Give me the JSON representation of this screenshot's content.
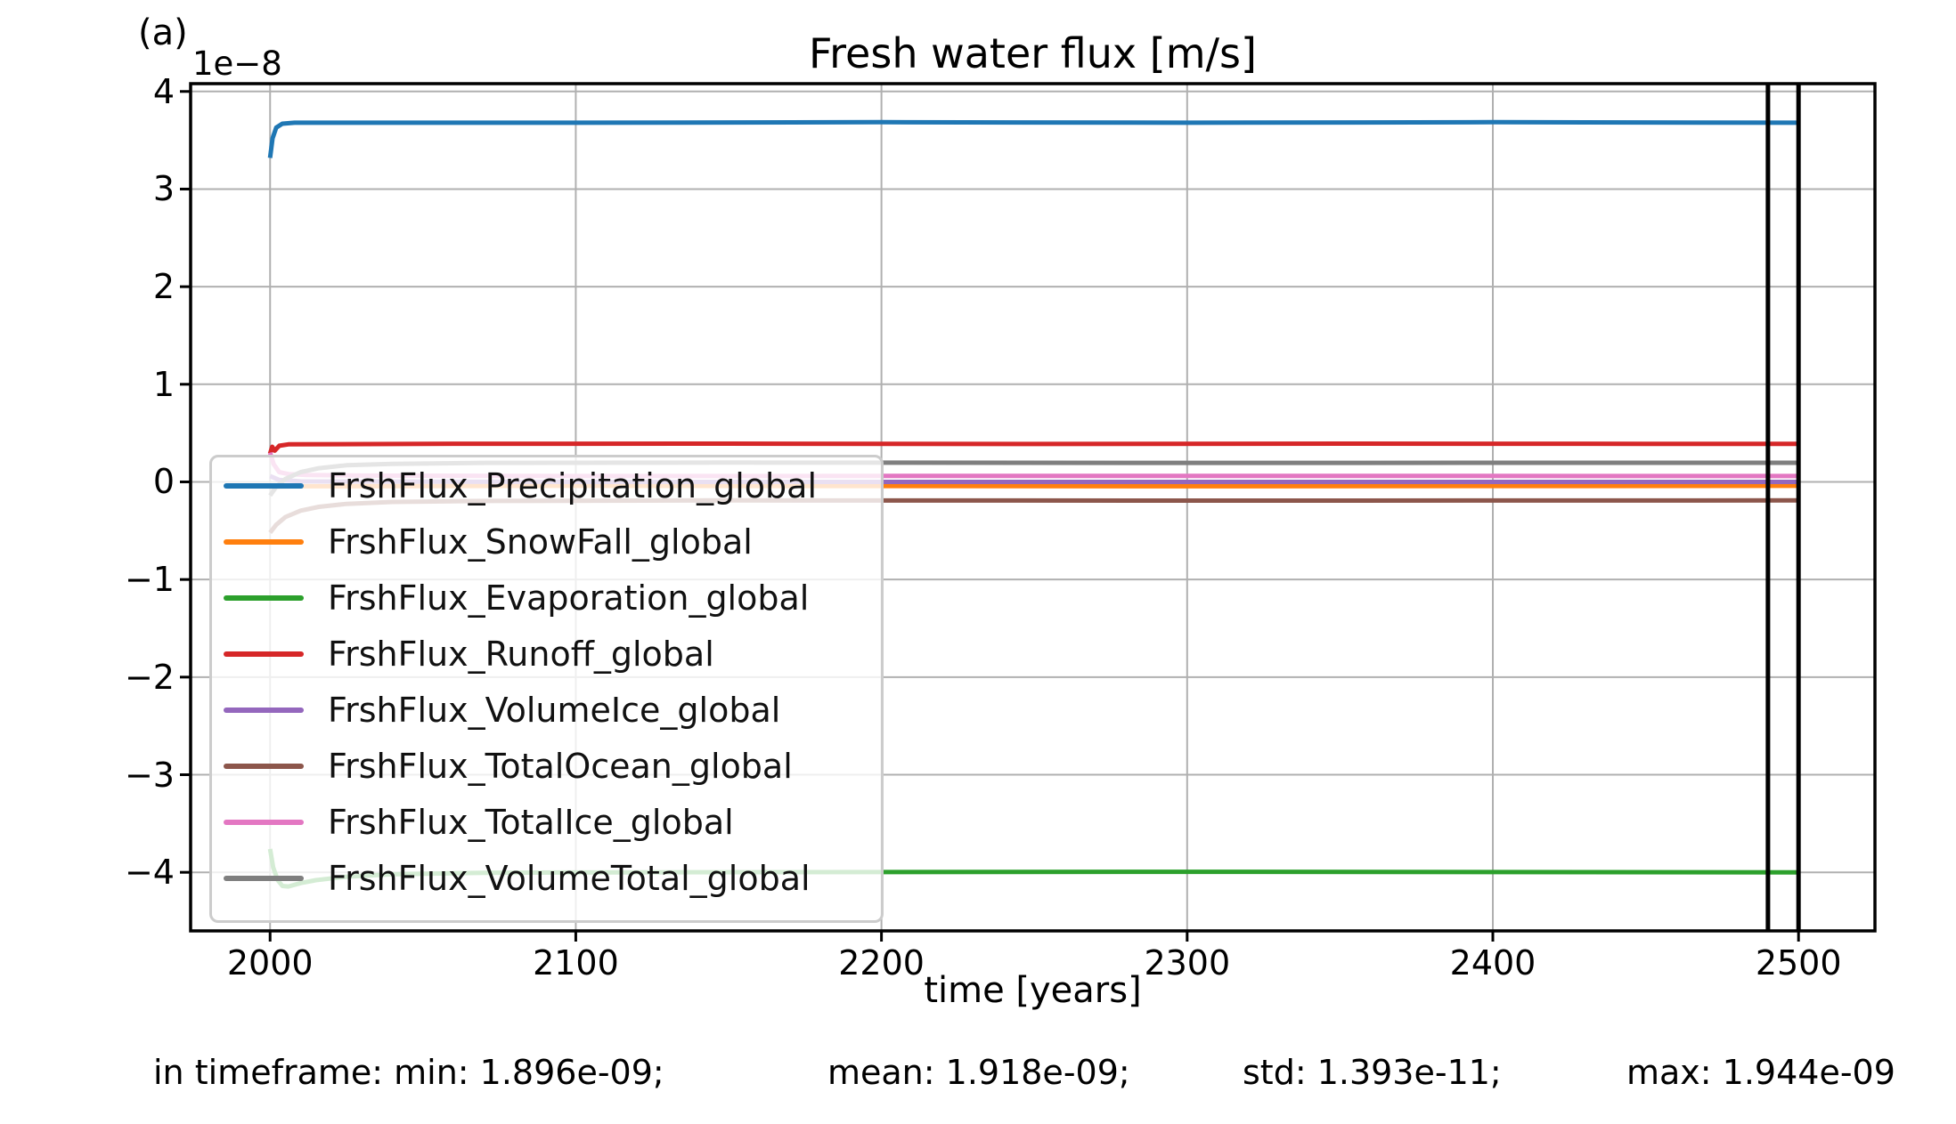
{
  "figure": {
    "panel_label": "(a)",
    "title": "Fresh water flux [m/s]",
    "xlabel": "time [years]",
    "y_offset_label": "1e−8"
  },
  "footer": {
    "segments": [
      "in timeframe: min: 1.896e-09;",
      "mean: 1.918e-09;",
      "std: 1.393e-11;",
      "max: 1.944e-09"
    ]
  },
  "chart_data": {
    "type": "line",
    "title": "Fresh water flux [m/s]",
    "xlabel": "time [years]",
    "ylabel": "",
    "y_scale_factor": "1e-8",
    "xlim": [
      1974,
      2525
    ],
    "ylim_in_1e8": [
      -4.6,
      4.08
    ],
    "grid": true,
    "grid_color": "#b0b0b0",
    "spine_color": "#000000",
    "xticks": [
      2000,
      2100,
      2200,
      2300,
      2400,
      2500
    ],
    "yticks_in_1e8": [
      4,
      3,
      2,
      1,
      0,
      -1,
      -2,
      -3,
      -4
    ],
    "ytick_labels": [
      "4",
      "3",
      "2",
      "1",
      "0",
      "−1",
      "−2",
      "−3",
      "−4"
    ],
    "timeframe_marker_years": [
      2490,
      2500
    ],
    "marker_color": "#000000",
    "legend_position": "lower left",
    "series": [
      {
        "name": "FrshFlux_Precipitation_global",
        "color": "#1f77b4",
        "points_year_value1e8": [
          [
            2000,
            3.32
          ],
          [
            2000.8,
            3.52
          ],
          [
            2002,
            3.63
          ],
          [
            2004,
            3.67
          ],
          [
            2008,
            3.68
          ],
          [
            2100,
            3.68
          ],
          [
            2200,
            3.685
          ],
          [
            2300,
            3.68
          ],
          [
            2400,
            3.685
          ],
          [
            2500,
            3.68
          ]
        ]
      },
      {
        "name": "FrshFlux_SnowFall_global",
        "color": "#ff7f0e",
        "points_year_value1e8": [
          [
            2000,
            -0.05
          ],
          [
            2010,
            -0.045
          ],
          [
            2100,
            -0.04
          ],
          [
            2300,
            -0.045
          ],
          [
            2500,
            -0.04
          ]
        ]
      },
      {
        "name": "FrshFlux_Evaporation_global",
        "color": "#2ca02c",
        "points_year_value1e8": [
          [
            2000,
            -3.76
          ],
          [
            2001,
            -3.95
          ],
          [
            2002.5,
            -4.08
          ],
          [
            2004,
            -4.14
          ],
          [
            2006,
            -4.145
          ],
          [
            2010,
            -4.11
          ],
          [
            2015,
            -4.08
          ],
          [
            2025,
            -4.045
          ],
          [
            2040,
            -4.02
          ],
          [
            2070,
            -4.005
          ],
          [
            2120,
            -4.0
          ],
          [
            2300,
            -3.995
          ],
          [
            2500,
            -4.0
          ]
        ]
      },
      {
        "name": "FrshFlux_Runoff_global",
        "color": "#d62728",
        "points_year_value1e8": [
          [
            2000,
            0.29
          ],
          [
            2000.7,
            0.36
          ],
          [
            2001.5,
            0.32
          ],
          [
            2003,
            0.37
          ],
          [
            2006,
            0.385
          ],
          [
            2050,
            0.39
          ],
          [
            2150,
            0.392
          ],
          [
            2250,
            0.388
          ],
          [
            2350,
            0.392
          ],
          [
            2450,
            0.39
          ],
          [
            2500,
            0.39
          ]
        ]
      },
      {
        "name": "FrshFlux_VolumeIce_global",
        "color": "#9467bd",
        "points_year_value1e8": [
          [
            2000,
            0.06
          ],
          [
            2003,
            0.02
          ],
          [
            2010,
            0.005
          ],
          [
            2100,
            0.0
          ],
          [
            2300,
            0.0
          ],
          [
            2500,
            0.0
          ]
        ]
      },
      {
        "name": "FrshFlux_TotalOcean_global",
        "color": "#8c564b",
        "points_year_value1e8": [
          [
            2000,
            -0.52
          ],
          [
            2002,
            -0.44
          ],
          [
            2005,
            -0.36
          ],
          [
            2010,
            -0.295
          ],
          [
            2016,
            -0.255
          ],
          [
            2025,
            -0.225
          ],
          [
            2040,
            -0.205
          ],
          [
            2070,
            -0.195
          ],
          [
            2150,
            -0.19
          ],
          [
            2300,
            -0.192
          ],
          [
            2500,
            -0.19
          ]
        ]
      },
      {
        "name": "FrshFlux_TotalIce_global",
        "color": "#e377c2",
        "points_year_value1e8": [
          [
            2000,
            0.3
          ],
          [
            2001.2,
            0.18
          ],
          [
            2003,
            0.1
          ],
          [
            2006,
            0.08
          ],
          [
            2012,
            0.07
          ],
          [
            2030,
            0.065
          ],
          [
            2100,
            0.06
          ],
          [
            2300,
            0.062
          ],
          [
            2500,
            0.06
          ]
        ]
      },
      {
        "name": "FrshFlux_VolumeTotal_global",
        "color": "#7f7f7f",
        "points_year_value1e8": [
          [
            2000,
            -0.14
          ],
          [
            2002,
            -0.05
          ],
          [
            2005,
            0.03
          ],
          [
            2010,
            0.1
          ],
          [
            2016,
            0.14
          ],
          [
            2025,
            0.17
          ],
          [
            2040,
            0.185
          ],
          [
            2070,
            0.195
          ],
          [
            2150,
            0.198
          ],
          [
            2300,
            0.195
          ],
          [
            2500,
            0.196
          ]
        ]
      }
    ]
  }
}
